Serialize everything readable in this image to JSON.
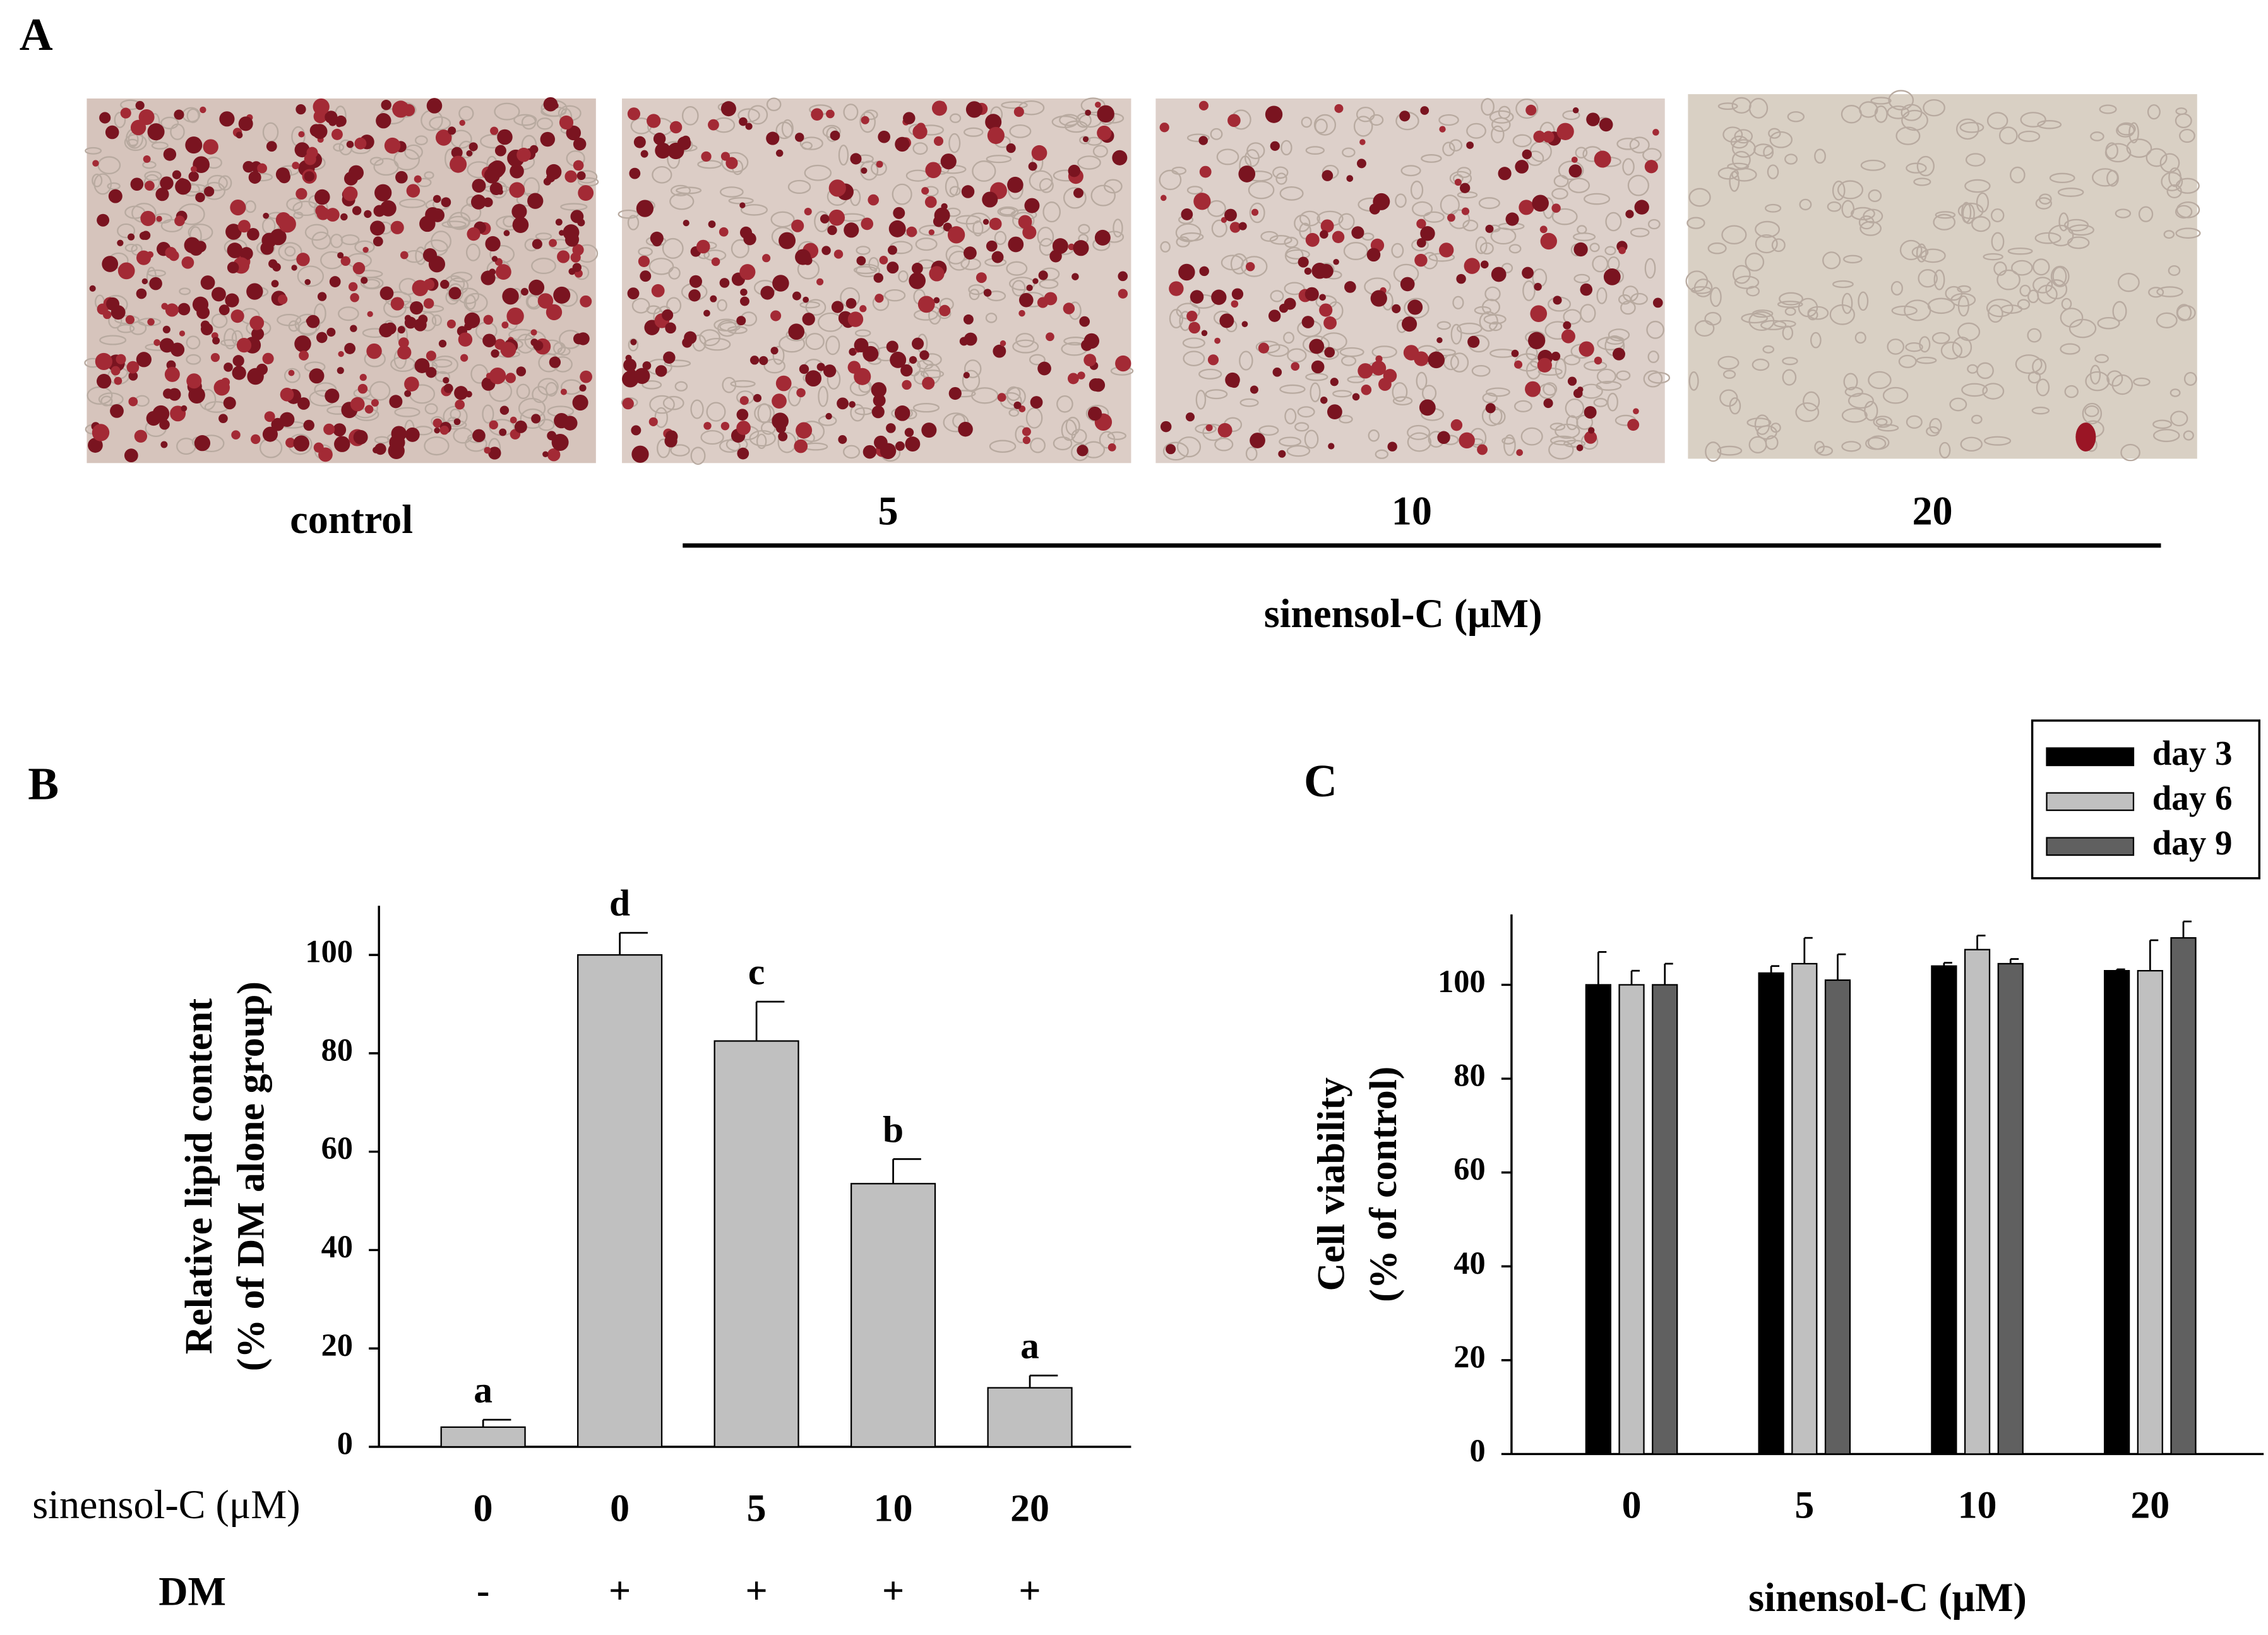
{
  "panel_a": {
    "label": "A",
    "captions": [
      "control",
      "5",
      "10",
      "20"
    ],
    "axis_label": "sinensol-C (μM)"
  },
  "chart_data": [
    {
      "type": "bar",
      "panel": "B",
      "ylabel": [
        "Relative lipid content",
        "(% of DM alone group)"
      ],
      "row_labels": [
        "sinensol-C (μM)",
        "DM"
      ],
      "categories": [
        "0",
        "0",
        "5",
        "10",
        "20"
      ],
      "dm": [
        "-",
        "+",
        "+",
        "+",
        "+"
      ],
      "values": [
        4,
        100,
        82.5,
        53.5,
        12
      ],
      "errors": [
        1.5,
        4.5,
        8,
        5,
        2.5
      ],
      "letters": [
        "a",
        "d",
        "c",
        "b",
        "a"
      ],
      "color": "#c0c0c0",
      "ylim": [
        0,
        110
      ],
      "yticks": [
        0,
        20,
        40,
        60,
        80,
        100
      ]
    },
    {
      "type": "bar",
      "panel": "C",
      "ylabel": [
        "Cell viability",
        "(% of control)"
      ],
      "xlabel": "sinensol-C (μM)",
      "categories": [
        "0",
        "5",
        "10",
        "20"
      ],
      "series": [
        {
          "name": "day 3",
          "color": "#000000",
          "values": [
            100,
            102.5,
            104,
            103
          ],
          "errors": [
            7,
            1.5,
            0.7,
            0.3
          ]
        },
        {
          "name": "day 6",
          "color": "#c0c0c0",
          "values": [
            100,
            104.5,
            107.5,
            103
          ],
          "errors": [
            3,
            5.5,
            3,
            6.5
          ]
        },
        {
          "name": "day 9",
          "color": "#606060",
          "values": [
            100,
            101,
            104.5,
            110
          ],
          "errors": [
            4.5,
            5.5,
            1,
            3.5
          ]
        }
      ],
      "legend": "upper right",
      "ylim": [
        0,
        115
      ],
      "yticks": [
        0,
        20,
        40,
        60,
        80,
        100
      ]
    }
  ]
}
